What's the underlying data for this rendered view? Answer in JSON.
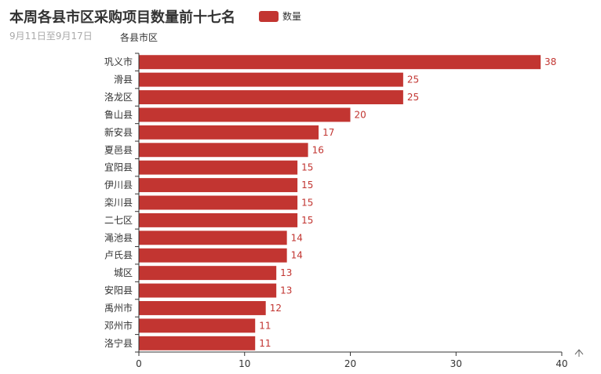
{
  "title": "本周各县市区采购项目数量前十七名",
  "subtitle": "9月11日至9月17日",
  "legend": {
    "label": "数量"
  },
  "colors": {
    "bar": "#c23531",
    "axis": "#333333",
    "text": "#333333"
  },
  "toolbox": {
    "icon": "up-arrow-icon"
  },
  "chart_data": {
    "type": "bar",
    "orientation": "horizontal",
    "title": "本周各县市区采购项目数量前十七名",
    "subtitle": "9月11日至9月17日",
    "ylabel": "各县市区",
    "xlabel": "",
    "xlim": [
      0,
      40
    ],
    "xticks": [
      0,
      10,
      20,
      30,
      40
    ],
    "grid": false,
    "legend_position": "top",
    "categories": [
      "巩义市",
      "滑县",
      "洛龙区",
      "鲁山县",
      "新安县",
      "夏邑县",
      "宜阳县",
      "伊川县",
      "栾川县",
      "二七区",
      "渑池县",
      "卢氏县",
      "城区",
      "安阳县",
      "禹州市",
      "邓州市",
      "洛宁县"
    ],
    "series": [
      {
        "name": "数量",
        "values": [
          38,
          25,
          25,
          20,
          17,
          16,
          15,
          15,
          15,
          15,
          14,
          14,
          13,
          13,
          12,
          11,
          11
        ]
      }
    ]
  }
}
